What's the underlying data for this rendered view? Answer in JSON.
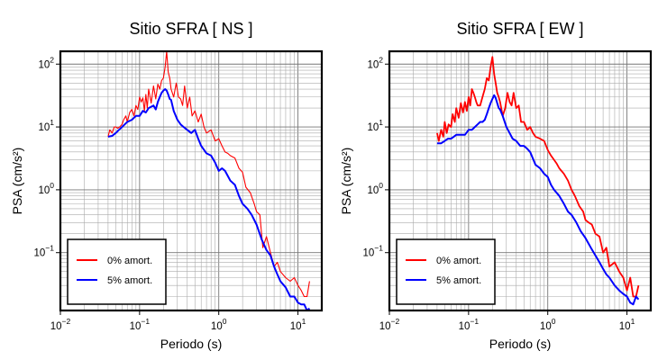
{
  "chart_data": [
    {
      "type": "line",
      "title": "Sitio SFRA [ NS ]",
      "xlabel": "Periodo (s)",
      "ylabel": "PSA (cm/s²)",
      "xscale": "log",
      "yscale": "log",
      "xlim": [
        0.01,
        20
      ],
      "ylim": [
        0.012,
        160
      ],
      "grid": true,
      "legend_position": "lower-left",
      "x_ticks": [
        {
          "base": "10",
          "exp": "−2",
          "value": 0.01
        },
        {
          "base": "10",
          "exp": "−1",
          "value": 0.1
        },
        {
          "base": "10",
          "exp": "0",
          "value": 1
        },
        {
          "base": "10",
          "exp": "1",
          "value": 10
        }
      ],
      "y_ticks": [
        {
          "base": "10",
          "exp": "−1",
          "value": 0.1
        },
        {
          "base": "10",
          "exp": "0",
          "value": 1
        },
        {
          "base": "10",
          "exp": "1",
          "value": 10
        },
        {
          "base": "10",
          "exp": "2",
          "value": 100
        }
      ],
      "series": [
        {
          "name": "0% amort.",
          "color": "#ff0000",
          "x": [
            0.04,
            0.042,
            0.045,
            0.048,
            0.05,
            0.053,
            0.056,
            0.06,
            0.063,
            0.067,
            0.07,
            0.075,
            0.08,
            0.085,
            0.09,
            0.095,
            0.1,
            0.105,
            0.11,
            0.115,
            0.12,
            0.125,
            0.13,
            0.14,
            0.15,
            0.16,
            0.17,
            0.18,
            0.19,
            0.2,
            0.21,
            0.22,
            0.23,
            0.24,
            0.25,
            0.27,
            0.29,
            0.31,
            0.33,
            0.35,
            0.37,
            0.4,
            0.43,
            0.46,
            0.5,
            0.55,
            0.6,
            0.65,
            0.7,
            0.8,
            0.9,
            1.0,
            1.1,
            1.2,
            1.3,
            1.4,
            1.6,
            1.8,
            2.0,
            2.2,
            2.5,
            2.8,
            3.0,
            3.3,
            3.6,
            4.0,
            4.5,
            5.0,
            5.5,
            6.0,
            7.0,
            8.0,
            9.0,
            10.0,
            11.0,
            12.0,
            13.0,
            14.0
          ],
          "y": [
            7,
            9,
            8,
            10,
            10,
            9.5,
            10,
            11,
            13,
            15,
            12,
            17,
            19,
            15,
            22,
            19,
            30,
            25,
            29,
            18,
            33,
            20,
            40,
            24,
            45,
            28,
            48,
            40,
            55,
            60,
            90,
            160,
            75,
            60,
            40,
            30,
            50,
            30,
            28,
            22,
            45,
            20,
            30,
            15,
            18,
            12,
            16,
            10,
            8,
            9,
            6,
            6.5,
            5,
            4,
            3.8,
            3.5,
            3.2,
            2.2,
            1.9,
            1.1,
            0.9,
            0.6,
            0.45,
            0.4,
            0.12,
            0.18,
            0.1,
            0.06,
            0.07,
            0.05,
            0.04,
            0.035,
            0.04,
            0.03,
            0.025,
            0.02,
            0.02,
            0.035
          ]
        },
        {
          "name": "5% amort.",
          "color": "#0000ff",
          "x": [
            0.04,
            0.045,
            0.05,
            0.055,
            0.06,
            0.065,
            0.07,
            0.08,
            0.09,
            0.1,
            0.11,
            0.12,
            0.13,
            0.14,
            0.15,
            0.16,
            0.17,
            0.18,
            0.19,
            0.2,
            0.21,
            0.22,
            0.23,
            0.24,
            0.25,
            0.27,
            0.3,
            0.33,
            0.36,
            0.4,
            0.45,
            0.5,
            0.55,
            0.6,
            0.7,
            0.8,
            0.9,
            1.0,
            1.1,
            1.2,
            1.4,
            1.6,
            1.8,
            2.0,
            2.3,
            2.6,
            3.0,
            3.5,
            4.0,
            4.5,
            5.0,
            5.5,
            6.0,
            7.0,
            8.0,
            9.0,
            10.0,
            11.0,
            12.0,
            13.0,
            14.0
          ],
          "y": [
            7,
            7.2,
            8,
            9,
            10,
            11,
            12,
            13,
            15,
            15,
            18,
            17,
            20,
            21,
            22,
            19,
            25,
            30,
            35,
            38,
            40,
            38,
            33,
            28,
            27,
            18,
            13,
            11,
            10,
            9,
            8,
            9,
            6.5,
            5,
            3.8,
            3.5,
            2.7,
            2,
            2.2,
            2,
            1.4,
            1.2,
            0.8,
            0.6,
            0.5,
            0.4,
            0.28,
            0.16,
            0.11,
            0.09,
            0.06,
            0.045,
            0.035,
            0.028,
            0.02,
            0.02,
            0.016,
            0.015,
            0.015,
            0.012,
            0.013
          ]
        }
      ]
    },
    {
      "type": "line",
      "title": "Sitio SFRA [ EW ]",
      "xlabel": "Periodo (s)",
      "ylabel": "PSA (cm/s²)",
      "xscale": "log",
      "yscale": "log",
      "xlim": [
        0.01,
        20
      ],
      "ylim": [
        0.012,
        160
      ],
      "grid": true,
      "legend_position": "lower-left",
      "x_ticks": [
        {
          "base": "10",
          "exp": "−2",
          "value": 0.01
        },
        {
          "base": "10",
          "exp": "−1",
          "value": 0.1
        },
        {
          "base": "10",
          "exp": "0",
          "value": 1
        },
        {
          "base": "10",
          "exp": "1",
          "value": 10
        }
      ],
      "y_ticks": [
        {
          "base": "10",
          "exp": "−1",
          "value": 0.1
        },
        {
          "base": "10",
          "exp": "0",
          "value": 1
        },
        {
          "base": "10",
          "exp": "1",
          "value": 10
        },
        {
          "base": "10",
          "exp": "2",
          "value": 100
        }
      ],
      "series": [
        {
          "name": "0% amort.",
          "color": "#ff0000",
          "x": [
            0.04,
            0.042,
            0.045,
            0.048,
            0.05,
            0.053,
            0.056,
            0.06,
            0.063,
            0.067,
            0.07,
            0.075,
            0.08,
            0.085,
            0.09,
            0.095,
            0.1,
            0.105,
            0.11,
            0.115,
            0.12,
            0.125,
            0.13,
            0.14,
            0.15,
            0.16,
            0.17,
            0.18,
            0.19,
            0.2,
            0.21,
            0.22,
            0.23,
            0.24,
            0.25,
            0.27,
            0.29,
            0.31,
            0.33,
            0.35,
            0.37,
            0.4,
            0.43,
            0.46,
            0.5,
            0.55,
            0.6,
            0.65,
            0.7,
            0.8,
            0.9,
            1.0,
            1.1,
            1.2,
            1.3,
            1.4,
            1.6,
            1.8,
            2.0,
            2.2,
            2.5,
            2.8,
            3.0,
            3.3,
            3.6,
            4.0,
            4.5,
            5.0,
            5.5,
            6.0,
            7.0,
            8.0,
            9.0,
            10.0,
            11.0,
            12.0,
            13.0,
            14.0
          ],
          "y": [
            8,
            6,
            9,
            7,
            12,
            8,
            11,
            10,
            16,
            12,
            20,
            14,
            24,
            17,
            25,
            18,
            30,
            22,
            40,
            35,
            30,
            25,
            22,
            22,
            30,
            40,
            60,
            55,
            90,
            130,
            70,
            50,
            35,
            30,
            25,
            15,
            20,
            35,
            25,
            22,
            35,
            20,
            22,
            12,
            12,
            9,
            10,
            8,
            7,
            6.5,
            6,
            4.3,
            3.5,
            3,
            2.6,
            2.2,
            1.8,
            1.4,
            1.0,
            0.8,
            0.55,
            0.45,
            0.33,
            0.3,
            0.28,
            0.2,
            0.18,
            0.1,
            0.12,
            0.06,
            0.07,
            0.05,
            0.04,
            0.025,
            0.04,
            0.02,
            0.02,
            0.03
          ]
        },
        {
          "name": "5% amort.",
          "color": "#0000ff",
          "x": [
            0.04,
            0.045,
            0.05,
            0.055,
            0.06,
            0.065,
            0.07,
            0.08,
            0.09,
            0.1,
            0.11,
            0.12,
            0.13,
            0.14,
            0.15,
            0.16,
            0.17,
            0.18,
            0.19,
            0.2,
            0.21,
            0.22,
            0.23,
            0.24,
            0.25,
            0.27,
            0.3,
            0.33,
            0.36,
            0.4,
            0.45,
            0.5,
            0.55,
            0.6,
            0.7,
            0.8,
            0.9,
            1.0,
            1.1,
            1.2,
            1.4,
            1.6,
            1.8,
            2.0,
            2.3,
            2.6,
            3.0,
            3.5,
            4.0,
            4.5,
            5.0,
            5.5,
            6.0,
            7.0,
            8.0,
            9.0,
            10.0,
            11.0,
            12.0,
            13.0,
            14.0
          ],
          "y": [
            5.5,
            5.5,
            6,
            6.5,
            6.5,
            7,
            7.5,
            7.5,
            7.5,
            9,
            9,
            10,
            11,
            12,
            12,
            13,
            16,
            20,
            24,
            28,
            32,
            29,
            24,
            20,
            19,
            15,
            10,
            8,
            6.5,
            6,
            5,
            5,
            4.5,
            4,
            2.5,
            2.2,
            1.8,
            1.6,
            1.2,
            1.0,
            0.8,
            0.6,
            0.45,
            0.4,
            0.3,
            0.22,
            0.17,
            0.12,
            0.09,
            0.07,
            0.055,
            0.045,
            0.04,
            0.03,
            0.025,
            0.022,
            0.02,
            0.016,
            0.015,
            0.02,
            0.018
          ]
        }
      ]
    }
  ]
}
